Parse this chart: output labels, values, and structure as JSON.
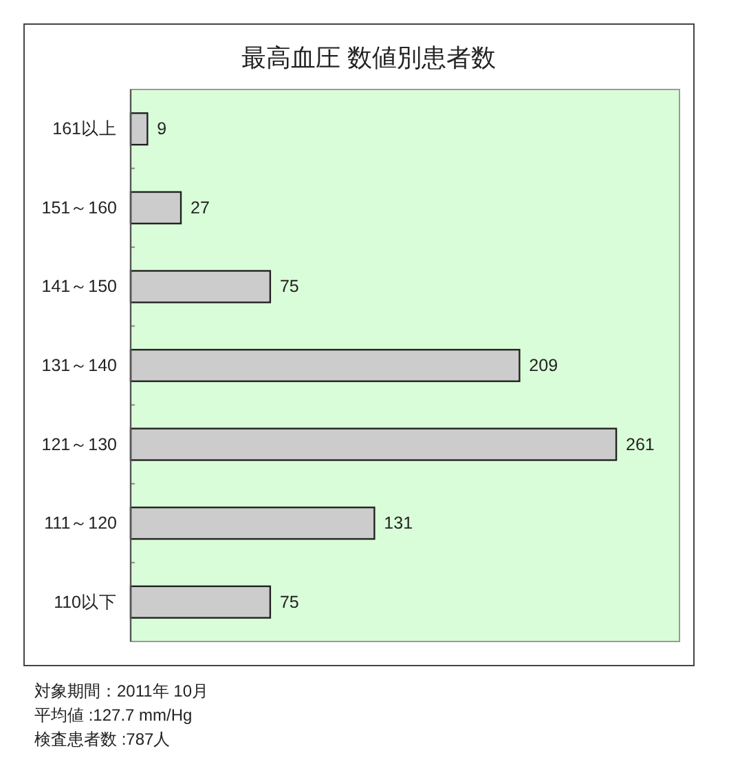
{
  "chart_data": {
    "type": "bar",
    "orientation": "horizontal",
    "title": "最高血圧 数値別患者数",
    "categories": [
      "161以上",
      "151～160",
      "141～150",
      "131～140",
      "121～130",
      "111～120",
      "110以下"
    ],
    "values": [
      9,
      27,
      75,
      209,
      261,
      131,
      75
    ],
    "color": "#cccccc",
    "xlim": [
      0,
      295
    ],
    "data_labels": true,
    "tick_labels": "y",
    "annotations": [
      "対象期間：2011年 10月",
      "平均値 :127.7 mm/Hg",
      "検査患者数 :787人"
    ]
  }
}
